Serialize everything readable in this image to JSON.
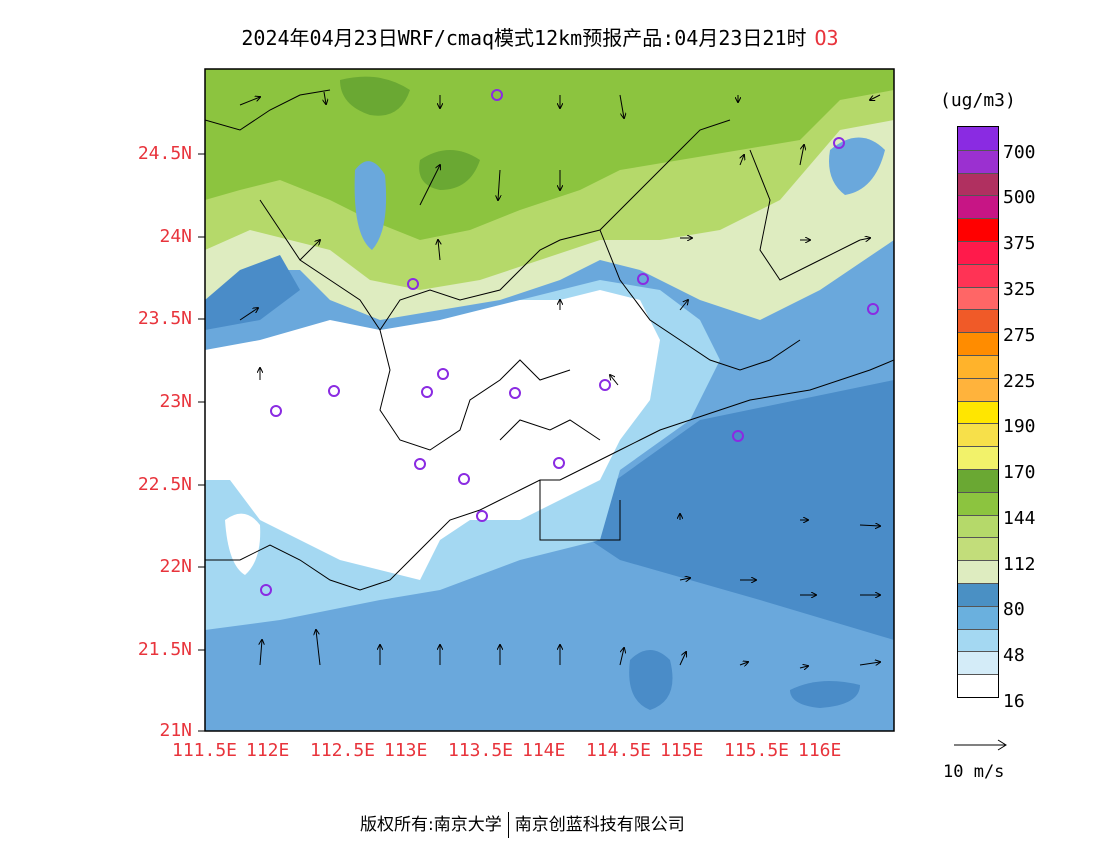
{
  "title": {
    "main": "2024年04月23日WRF/cmaq模式12km预报产品:04月23日21时",
    "species": "O3"
  },
  "axes": {
    "lat_labels": [
      "24.5N",
      "24N",
      "23.5N",
      "23N",
      "22.5N",
      "22N",
      "21.5N",
      "21N"
    ],
    "lon_labels": [
      "111.5E",
      "112E",
      "112.5E",
      "113E",
      "113.5E",
      "114E",
      "114.5E",
      "115E",
      "115.5E",
      "116E"
    ]
  },
  "colorbar": {
    "unit": "(ug/m3)",
    "colors": [
      "#8a2be2",
      "#9b30d0",
      "#b03060",
      "#c71585",
      "#ff0000",
      "#ff1a4b",
      "#ff3355",
      "#ff6666",
      "#f05a28",
      "#ff8c00",
      "#ffb32b",
      "#ffb33c",
      "#ffe600",
      "#f7e04a",
      "#f2f26a",
      "#6aa833",
      "#8cc43f",
      "#b5d96a",
      "#c2dd7a",
      "#deecc0",
      "#4a90c4",
      "#6ab0de",
      "#a4d8f2",
      "#d4ecf8",
      "#ffffff"
    ],
    "labels": [
      "700",
      "500",
      "375",
      "325",
      "275",
      "225",
      "190",
      "170",
      "144",
      "112",
      "80",
      "48",
      "16"
    ]
  },
  "wind_reference": {
    "label": "10 m/s"
  },
  "footer": {
    "copyright": "版权所有:南京大学",
    "company": "南京创蓝科技有限公司"
  },
  "map_colors": {
    "sea": "#6aa8dc",
    "sea_dark": "#4a8cc8",
    "coast_low": "#ffffff",
    "coast_light": "#a4d8f2",
    "inland_pale": "#deecc0",
    "inland_mid": "#b5d96a",
    "inland_green": "#8cc43f",
    "inland_dark": "#6aa833"
  }
}
